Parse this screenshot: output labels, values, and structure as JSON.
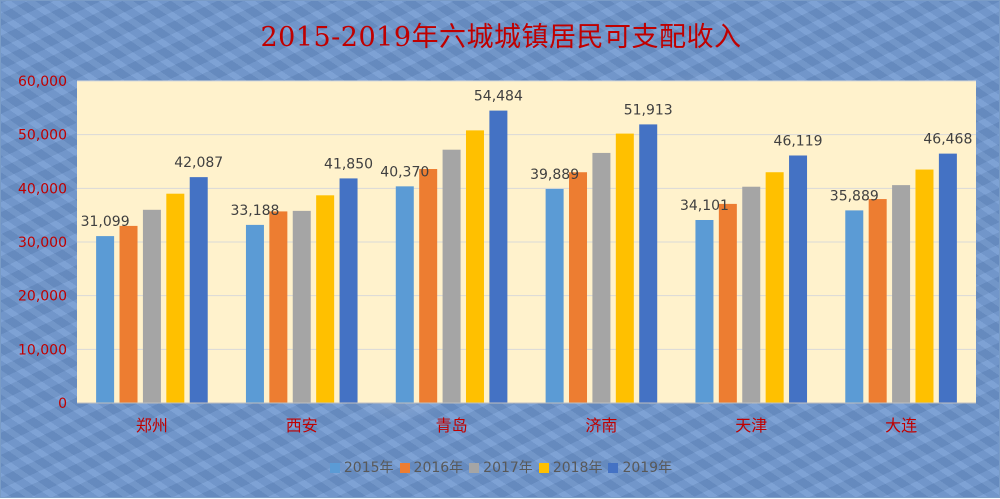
{
  "chart_data": {
    "type": "bar",
    "title": "2015-2019年六城城镇居民可支配收入",
    "categories": [
      "郑州",
      "西安",
      "青岛",
      "济南",
      "天津",
      "大连"
    ],
    "ylim": [
      0,
      60000
    ],
    "yticks": [
      0,
      10000,
      20000,
      30000,
      40000,
      50000,
      60000
    ],
    "ytick_labels": [
      "0",
      "10,000",
      "20,000",
      "30,000",
      "40,000",
      "50,000",
      "60,000"
    ],
    "grid": true,
    "legend_position": "bottom",
    "series": [
      {
        "name": "2015年",
        "color": "#5b9bd5",
        "values": [
          31099,
          33188,
          40370,
          39889,
          34101,
          35889
        ],
        "labels": [
          "31,099",
          "33,188",
          "40,370",
          "39,889",
          "34,101",
          "35,889"
        ]
      },
      {
        "name": "2016年",
        "color": "#ed7d31",
        "values": [
          33000,
          35700,
          43600,
          43000,
          37100,
          38000
        ],
        "labels": null
      },
      {
        "name": "2017年",
        "color": "#a5a5a5",
        "values": [
          36000,
          35800,
          47200,
          46600,
          40300,
          40600
        ],
        "labels": null
      },
      {
        "name": "2018年",
        "color": "#ffc000",
        "values": [
          39000,
          38700,
          50800,
          50200,
          43000,
          43500
        ],
        "labels": null
      },
      {
        "name": "2019年",
        "color": "#4472c4",
        "values": [
          42087,
          41850,
          54484,
          51913,
          46119,
          46468
        ],
        "labels": [
          "42,087",
          "41,850",
          "54,484",
          "51,913",
          "46,119",
          "46,468"
        ]
      }
    ]
  }
}
